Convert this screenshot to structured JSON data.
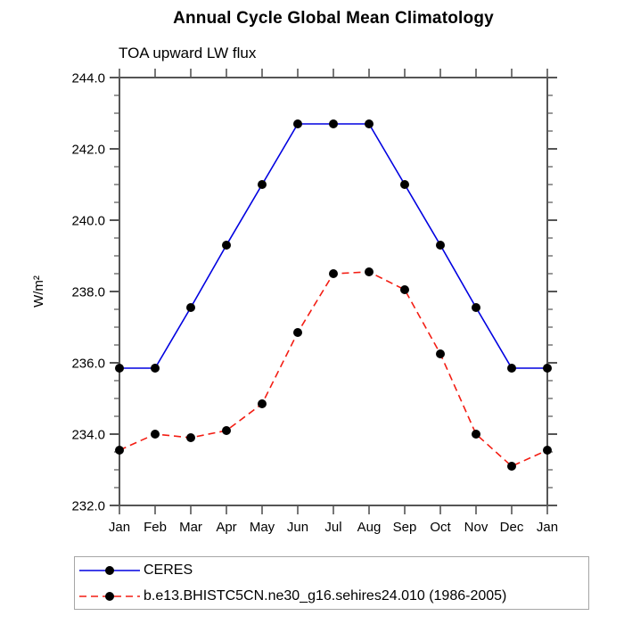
{
  "title": "Annual Cycle Global Mean Climatology",
  "subtitle": "TOA upward LW flux",
  "colors": {
    "axis": "#555555",
    "text": "#000000",
    "legend_border": "#a6a6a6",
    "background": "#ffffff",
    "marker": "#000000",
    "ceres_blue": "#0000e0",
    "model_red": "#f31d13"
  },
  "chart_data": {
    "type": "line",
    "title": "Annual Cycle Global Mean Climatology",
    "subtitle": "TOA upward LW flux",
    "xlabel": "",
    "ylabel": "W/m²",
    "categories": [
      "Jan",
      "Feb",
      "Mar",
      "Apr",
      "May",
      "Jun",
      "Jul",
      "Aug",
      "Sep",
      "Oct",
      "Nov",
      "Dec",
      "Jan"
    ],
    "ylim": [
      232.0,
      244.0
    ],
    "ytick_labels": [
      "232.0",
      "234.0",
      "236.0",
      "238.0",
      "240.0",
      "242.0",
      "244.0"
    ],
    "ytick_step": 2.0,
    "yminor_step": 0.5,
    "grid": false,
    "legend_position": "bottom-left-box",
    "series": [
      {
        "name": "CERES",
        "color": "#0000e0",
        "line_style": "solid",
        "marker": "filled-circle",
        "marker_color": "#000000",
        "values": [
          235.85,
          235.85,
          237.55,
          239.3,
          241.0,
          242.7,
          242.7,
          242.7,
          241.0,
          239.3,
          237.55,
          235.85,
          235.85
        ]
      },
      {
        "name": "b.e13.BHISTC5CN.ne30_g16.sehires24.010 (1986-2005)",
        "color": "#f31d13",
        "line_style": "dashed",
        "marker": "filled-circle",
        "marker_color": "#000000",
        "values": [
          233.55,
          234.0,
          233.9,
          234.1,
          234.85,
          236.85,
          238.5,
          238.55,
          238.05,
          236.25,
          234.0,
          233.1,
          233.55
        ]
      }
    ]
  }
}
